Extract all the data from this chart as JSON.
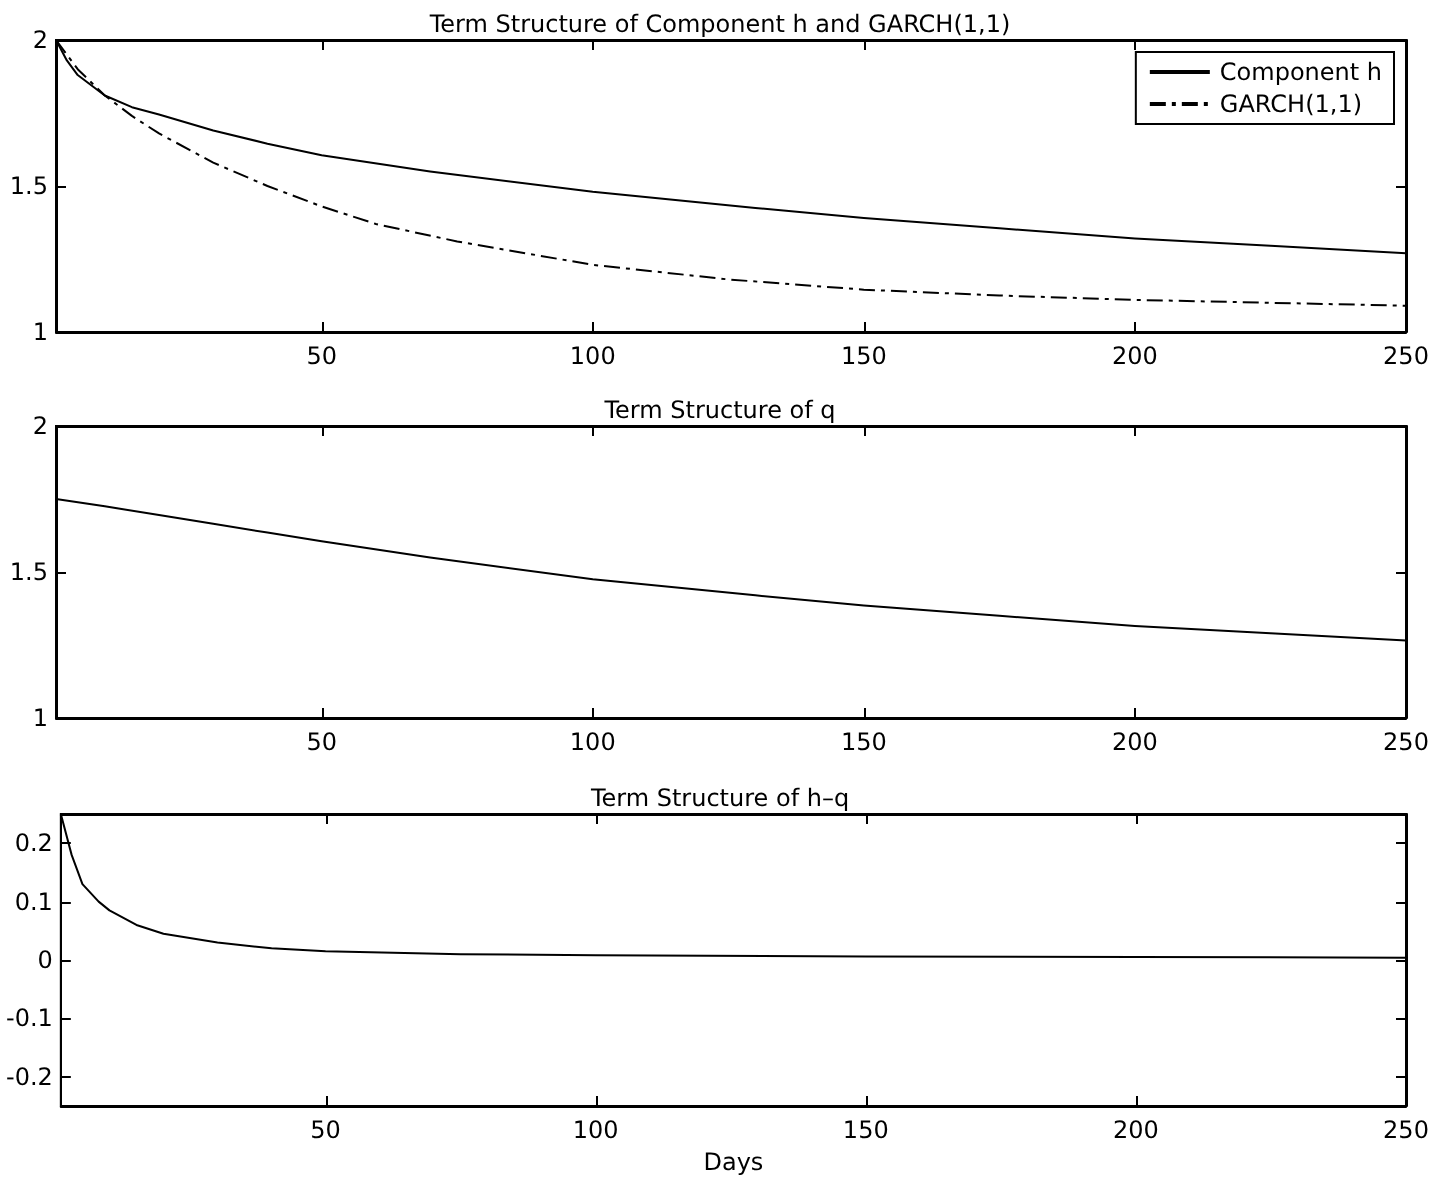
{
  "chart_data": [
    {
      "type": "line",
      "title": "Term Structure of Component h and GARCH(1,1)",
      "xlim": [
        1,
        250
      ],
      "xticks": [
        50,
        100,
        150,
        200,
        250
      ],
      "ylim": [
        1,
        2
      ],
      "yticks": [
        1,
        1.5,
        2
      ],
      "grid": false,
      "legend": "top right",
      "marker": "none",
      "series": [
        {
          "name": "Component h",
          "color": "#000000",
          "line_style": "solid",
          "x": [
            1,
            3,
            5,
            10,
            15,
            20,
            30,
            40,
            50,
            70,
            100,
            130,
            150,
            175,
            200,
            225,
            250
          ],
          "values": [
            2,
            1.93,
            1.88,
            1.81,
            1.77,
            1.745,
            1.69,
            1.645,
            1.605,
            1.55,
            1.48,
            1.425,
            1.39,
            1.355,
            1.32,
            1.295,
            1.27
          ]
        },
        {
          "name": "GARCH(1,1)",
          "color": "#000000",
          "line_style": "dashed",
          "x": [
            1,
            5,
            10,
            15,
            20,
            30,
            40,
            50,
            60,
            75,
            100,
            125,
            150,
            175,
            200,
            225,
            250
          ],
          "values": [
            2,
            1.9,
            1.81,
            1.74,
            1.68,
            1.58,
            1.5,
            1.43,
            1.37,
            1.31,
            1.23,
            1.18,
            1.145,
            1.125,
            1.11,
            1.1,
            1.09
          ]
        }
      ]
    },
    {
      "type": "line",
      "title": "Term Structure of q",
      "xlim": [
        1,
        250
      ],
      "xticks": [
        50,
        100,
        150,
        200,
        250
      ],
      "ylim": [
        1,
        2
      ],
      "yticks": [
        1,
        1.5,
        2
      ],
      "grid": false,
      "legend": false,
      "marker": "none",
      "series": [
        {
          "color": "#000000",
          "line_style": "solid",
          "x": [
            1,
            10,
            20,
            30,
            40,
            50,
            70,
            100,
            130,
            150,
            175,
            200,
            225,
            250
          ],
          "values": [
            1.75,
            1.725,
            1.695,
            1.665,
            1.635,
            1.605,
            1.55,
            1.475,
            1.42,
            1.385,
            1.35,
            1.315,
            1.29,
            1.265
          ]
        }
      ]
    },
    {
      "type": "line",
      "title": "Term Structure of h–q",
      "xlabel": "Days",
      "xlim": [
        1,
        250
      ],
      "xticks": [
        50,
        100,
        150,
        200,
        250
      ],
      "ylim": [
        -0.25,
        0.25
      ],
      "yticks": [
        -0.2,
        -0.1,
        0,
        0.1,
        0.2
      ],
      "grid": false,
      "legend": false,
      "marker": "none",
      "series": [
        {
          "color": "#000000",
          "line_style": "solid",
          "x": [
            1,
            3,
            5,
            8,
            10,
            15,
            20,
            30,
            40,
            50,
            75,
            100,
            150,
            200,
            250
          ],
          "values": [
            0.25,
            0.18,
            0.13,
            0.1,
            0.085,
            0.06,
            0.045,
            0.03,
            0.02,
            0.015,
            0.01,
            0.008,
            0.006,
            0.005,
            0.004
          ]
        }
      ]
    }
  ]
}
